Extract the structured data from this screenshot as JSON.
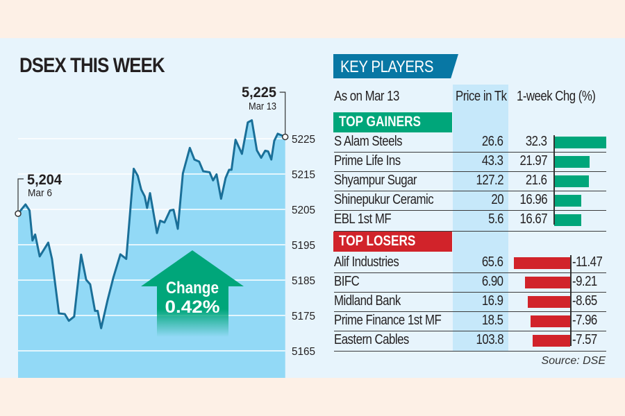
{
  "title": "DSEX THIS WEEK",
  "chart_data": {
    "type": "area",
    "title": "DSEX THIS WEEK",
    "xlabel": "",
    "ylabel": "",
    "ylim": [
      5161,
      5233
    ],
    "y_ticks": [
      5225,
      5215,
      5205,
      5195,
      5185,
      5175,
      5165
    ],
    "x_unit": "percent of week elapsed (Mar 6 to Mar 13)",
    "x": [
      0,
      2.8,
      4.3,
      5.4,
      6.4,
      8.1,
      11.3,
      12.7,
      15.3,
      17.5,
      19,
      21,
      23.6,
      25.5,
      27,
      28.8,
      29.8,
      31.1,
      33.5,
      35.7,
      38.3,
      40.5,
      43.3,
      44.8,
      46.1,
      47.4,
      48.3,
      49.4,
      52,
      53.2,
      54.8,
      56.9,
      58.2,
      59.8,
      61.7,
      64.3,
      66,
      67.8,
      69.3,
      71.7,
      73,
      74.3,
      76,
      77.7,
      79,
      79.9,
      81.4,
      83.8,
      86,
      87.5,
      89.4,
      91,
      92.5,
      93.6,
      94.8,
      95.9,
      97.2,
      100
    ],
    "y": [
      5203.8,
      5206.4,
      5204.7,
      5196.2,
      5197.9,
      5191.7,
      5195.6,
      5191,
      5175.6,
      5175.4,
      5173.5,
      5174.7,
      5192.2,
      5185.1,
      5183.8,
      5176.3,
      5176.3,
      5171.4,
      5179.3,
      5185.8,
      5192.3,
      5191,
      5216.5,
      5214.5,
      5210.6,
      5208.7,
      5205.4,
      5209.6,
      5198.3,
      5201.8,
      5201.3,
      5204.7,
      5204.9,
      5199.5,
      5215.2,
      5222.4,
      5219.1,
      5218.5,
      5215.8,
      5215.5,
      5213.2,
      5214.9,
      5208,
      5213.9,
      5216.2,
      5216.2,
      5224.7,
      5220.7,
      5229.6,
      5230.2,
      5221.7,
      5219.6,
      5221.6,
      5221.4,
      5219.1,
      5224.4,
      5226.4,
      5225.5
    ],
    "annotations": {
      "start": {
        "value": "5,204",
        "date": "Mar 6"
      },
      "end": {
        "value": "5,225",
        "date": "Mar 13"
      },
      "change_label": "Change",
      "change_value": "0.42%"
    },
    "colors": {
      "line": "#1a6f98",
      "area": "#92d9f6",
      "grid": "#ffffff",
      "arrow": "#00a67a"
    }
  },
  "key_players": {
    "title": "KEY PLAYERS",
    "as_on": "As on Mar 13",
    "col_price": "Price in Tk",
    "col_chg": "1-week Chg (%)",
    "gainers_label": "TOP GAINERS",
    "losers_label": "TOP LOSERS",
    "gainers": [
      {
        "name": "S Alam Steels",
        "price": "26.6",
        "chg": "32.3",
        "value": 32.3
      },
      {
        "name": "Prime Life Ins",
        "price": "43.3",
        "chg": "21.97",
        "value": 21.97
      },
      {
        "name": "Shyampur Sugar",
        "price": "127.2",
        "chg": "21.6",
        "value": 21.6
      },
      {
        "name": "Shinepukur Ceramic",
        "price": "20",
        "chg": "16.96",
        "value": 16.96
      },
      {
        "name": "EBL 1st MF",
        "price": "5.6",
        "chg": "16.67",
        "value": 16.67
      }
    ],
    "losers": [
      {
        "name": "Alif Industries",
        "price": "65.6",
        "chg": "-11.47",
        "value": -11.47
      },
      {
        "name": "BIFC",
        "price": "6.90",
        "chg": "-9.21",
        "value": -9.21
      },
      {
        "name": "Midland Bank",
        "price": "16.9",
        "chg": "-8.65",
        "value": -8.65
      },
      {
        "name": "Prime Finance 1st MF",
        "price": "18.5",
        "chg": "-7.96",
        "value": -7.96
      },
      {
        "name": "Eastern Cables",
        "price": "103.8",
        "chg": "-7.57",
        "value": -7.57
      }
    ],
    "colors": {
      "gain": "#00a67a",
      "loss": "#d1232a",
      "header": "#0877a4"
    },
    "source": "Source: DSE"
  }
}
